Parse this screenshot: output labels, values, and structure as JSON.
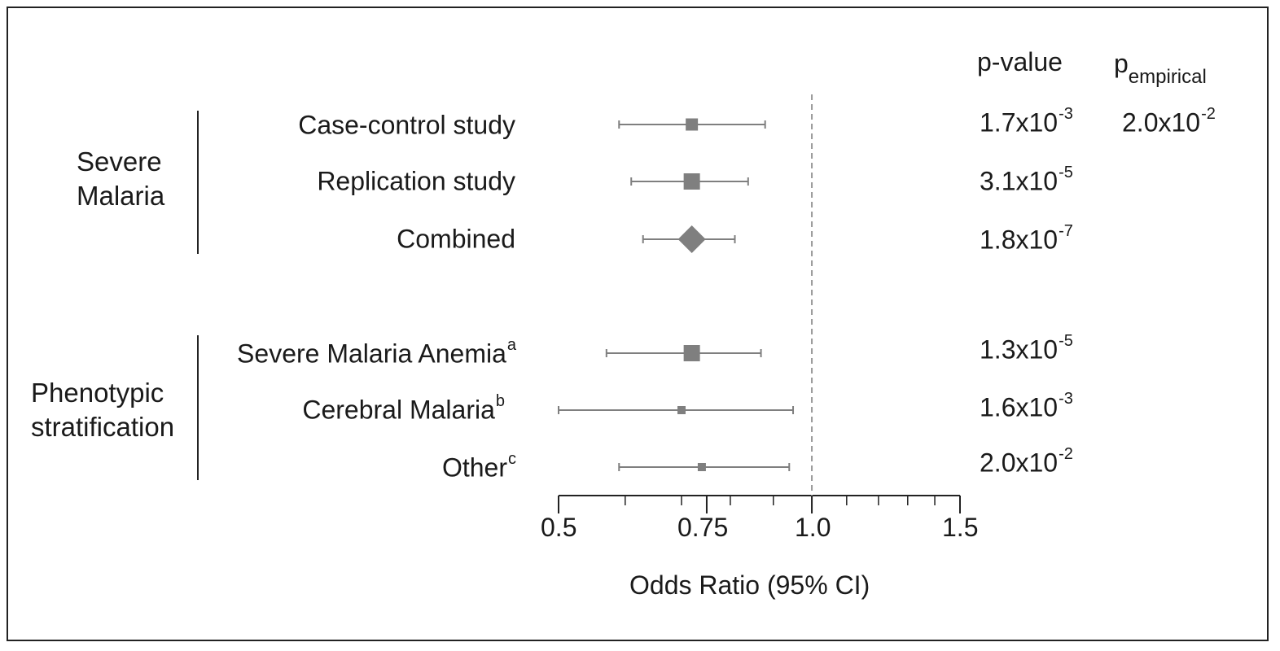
{
  "chart_data": {
    "type": "forest",
    "xlabel": "Odds Ratio (95% CI)",
    "x_scale": "log",
    "xlim": [
      0.5,
      1.5
    ],
    "reference_line": 1.0,
    "ticks": [
      {
        "value": 0.5,
        "label": "0.5"
      },
      {
        "value": 0.75,
        "label": "0.75"
      },
      {
        "value": 1.0,
        "label": "1.0"
      },
      {
        "value": 1.5,
        "label": "1.5"
      }
    ],
    "minor_ticks": [
      0.6,
      0.7,
      0.8,
      0.9,
      1.1,
      1.2,
      1.3,
      1.4
    ],
    "columns": {
      "pvalue_header": "p-value",
      "pemp_header_main": "p",
      "pemp_header_sub": "empirical"
    },
    "groups": [
      {
        "label_line1": "Severe",
        "label_line2": "Malaria"
      },
      {
        "label_line1": "Phenotypic",
        "label_line2": "stratification"
      }
    ],
    "rows": [
      {
        "label": "Case-control study",
        "sup": "",
        "group": 0,
        "marker": "square",
        "size": "medium",
        "or": 0.72,
        "lower": 0.59,
        "upper": 0.88,
        "p_base": "1.7x10",
        "p_exp": "-3",
        "pemp_base": "2.0x10",
        "pemp_exp": "-2"
      },
      {
        "label": "Replication study",
        "sup": "",
        "group": 0,
        "marker": "square",
        "size": "large",
        "or": 0.72,
        "lower": 0.61,
        "upper": 0.84,
        "p_base": "3.1x10",
        "p_exp": "-5",
        "pemp_base": "",
        "pemp_exp": ""
      },
      {
        "label": "Combined",
        "sup": "",
        "group": 0,
        "marker": "diamond",
        "size": "large",
        "or": 0.72,
        "lower": 0.63,
        "upper": 0.81,
        "p_base": "1.8x10",
        "p_exp": "-7",
        "pemp_base": "",
        "pemp_exp": ""
      },
      {
        "label": "Severe Malaria Anemia",
        "sup": "a",
        "group": 1,
        "marker": "square",
        "size": "large",
        "or": 0.72,
        "lower": 0.57,
        "upper": 0.87,
        "p_base": "1.3x10",
        "p_exp": "-5",
        "pemp_base": "",
        "pemp_exp": ""
      },
      {
        "label": "Cerebral Malaria",
        "sup": "b",
        "group": 1,
        "marker": "square",
        "size": "small",
        "or": 0.7,
        "lower": 0.5,
        "upper": 0.95,
        "p_base": "1.6x10",
        "p_exp": "-3",
        "pemp_base": "",
        "pemp_exp": ""
      },
      {
        "label": "Other",
        "sup": "c",
        "group": 1,
        "marker": "square",
        "size": "small",
        "or": 0.74,
        "lower": 0.59,
        "upper": 0.94,
        "p_base": "2.0x10",
        "p_exp": "-2",
        "pemp_base": "",
        "pemp_exp": ""
      }
    ],
    "colors": {
      "marker": "#7f7f7f",
      "whisker": "#7f7f7f",
      "axis": "#222222",
      "refline": "#999999"
    }
  }
}
